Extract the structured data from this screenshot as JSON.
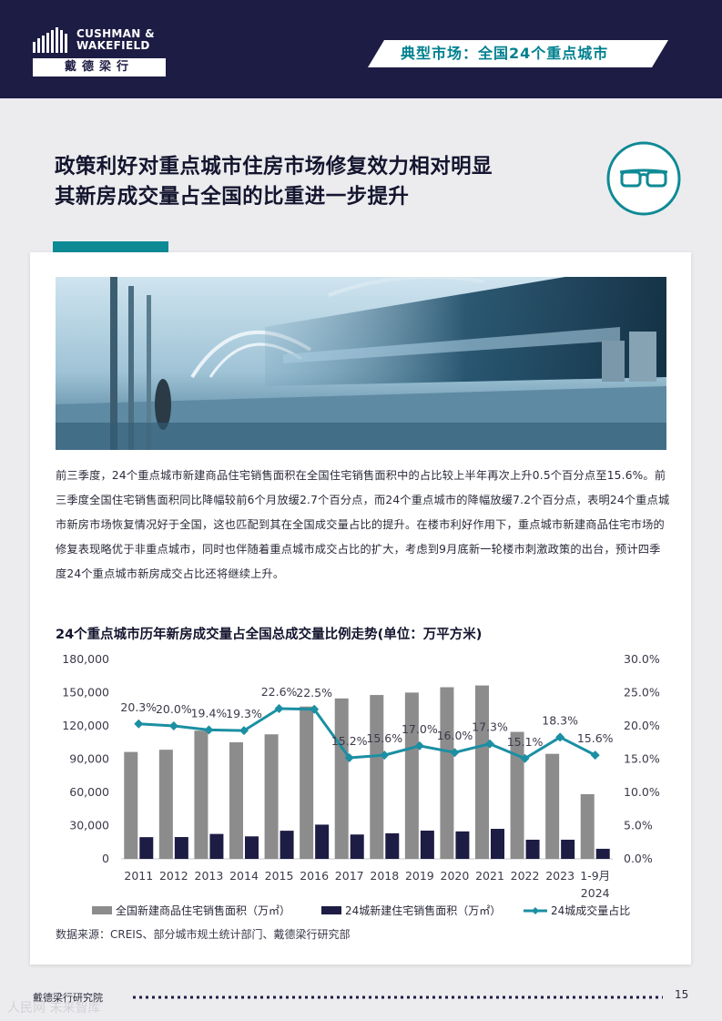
{
  "brand": {
    "name_line1": "CUSHMAN &",
    "name_line2": "WAKEFIELD",
    "name_cn": "戴德梁行"
  },
  "section_banner": "典型市场：全国24个重点城市",
  "title": {
    "line1": "政策利好对重点城市住房市场修复效力相对明显",
    "line2": "其新房成交量占全国的比重进一步提升"
  },
  "icon": "glasses-icon",
  "paragraph": "前三季度，24个重点城市新建商品住宅销售面积在全国住宅销售面积中的占比较上半年再次上升0.5个百分点至15.6%。前三季度全国住宅销售面积同比降幅较前6个月放缓2.7个百分点，而24个重点城市的降幅放缓7.2个百分点，表明24个重点城市新房市场恢复情况好于全国，这也匹配到其在全国成交量占比的提升。在楼市利好作用下，重点城市新建商品住宅市场的修复表现略优于非重点城市，同时也伴随着重点城市成交占比的扩大，考虑到9月底新一轮楼市刺激政策的出台，预计四季度24个重点城市新房成交占比还将继续上升。",
  "chart_data": {
    "type": "bar",
    "title": "24个重点城市历年新房成交量占全国总成交量比例走势(单位：万平方米)",
    "categories": [
      "2011",
      "2012",
      "2013",
      "2014",
      "2015",
      "2016",
      "2017",
      "2018",
      "2019",
      "2020",
      "2021",
      "2022",
      "2023",
      "1-9月\n2024"
    ],
    "series": [
      {
        "name": "全国新建商品住宅销售面积（万㎡）",
        "type": "bar",
        "axis": "left",
        "color": "#8c8c8c",
        "values": [
          96500,
          98500,
          115700,
          105200,
          112400,
          137500,
          144800,
          147900,
          150100,
          154900,
          156500,
          114600,
          94800,
          58400
        ]
      },
      {
        "name": "24城新建住宅销售面积（万㎡）",
        "type": "bar",
        "axis": "left",
        "color": "#1d1c44",
        "values": [
          19600,
          19700,
          22500,
          20300,
          25400,
          30900,
          22000,
          23100,
          25500,
          24800,
          27100,
          17300,
          17300,
          9100
        ]
      },
      {
        "name": "24城成交量占比",
        "type": "line",
        "axis": "right",
        "color": "#1b8fa3",
        "values": [
          20.3,
          20.0,
          19.4,
          19.3,
          22.6,
          22.5,
          15.2,
          15.6,
          17.0,
          16.0,
          17.3,
          15.1,
          18.3,
          15.6
        ],
        "labels": [
          "20.3%",
          "20.0%",
          "19.4%",
          "19.3%",
          "22.6%",
          "22.5%",
          "15.2%",
          "15.6%",
          "17.0%",
          "16.0%",
          "17.3%",
          "15.1%",
          "18.3%",
          "15.6%"
        ]
      }
    ],
    "y_left": {
      "min": 0,
      "max": 180000,
      "ticks": [
        "0",
        "30,000",
        "60,000",
        "90,000",
        "120,000",
        "150,000",
        "180,000"
      ]
    },
    "y_right": {
      "min": 0,
      "max": 30,
      "ticks": [
        "0.0%",
        "5.0%",
        "10.0%",
        "15.0%",
        "20.0%",
        "25.0%",
        "30.0%"
      ]
    },
    "grid": false,
    "legend_position": "bottom"
  },
  "source": "数据来源：CREIS、部分城市规土统计部门、戴德梁行研究部",
  "footer": {
    "left": "戴德梁行研究院",
    "page": "15"
  },
  "watermark": "人民网 未来智库"
}
